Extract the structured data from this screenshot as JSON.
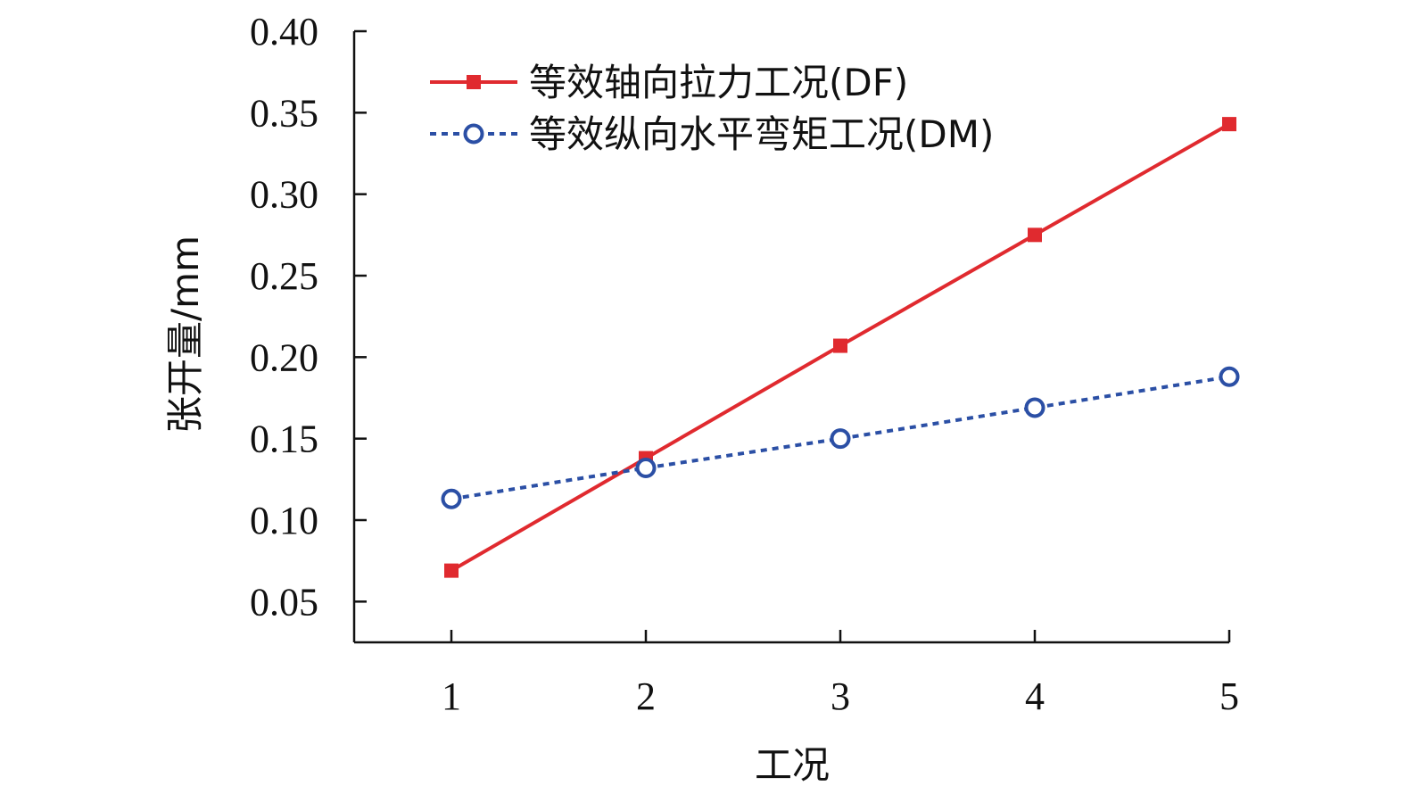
{
  "chart_data": {
    "type": "line",
    "title": "",
    "xlabel": "工况",
    "ylabel": "张开量/mm",
    "x": [
      1,
      2,
      3,
      4,
      5
    ],
    "x_tick_labels": [
      "1",
      "2",
      "3",
      "4",
      "5"
    ],
    "xlim": [
      0.5,
      5
    ],
    "ylim": [
      0.025,
      0.4
    ],
    "y_ticks": [
      0.05,
      0.1,
      0.15,
      0.2,
      0.25,
      0.3,
      0.35,
      0.4
    ],
    "y_tick_labels": [
      "0.05",
      "0.10",
      "0.15",
      "0.20",
      "0.25",
      "0.30",
      "0.35",
      "0.40"
    ],
    "grid": false,
    "legend_position": "top-left",
    "series": [
      {
        "name": "等效轴向拉力工况(DF)",
        "values": [
          0.069,
          0.138,
          0.207,
          0.275,
          0.343
        ],
        "color": "#e02a2f",
        "line_style": "solid",
        "marker": "square"
      },
      {
        "name": "等效纵向水平弯矩工况(DM)",
        "values": [
          0.113,
          0.132,
          0.15,
          0.169,
          0.188
        ],
        "color": "#2b4fa5",
        "line_style": "dotted",
        "marker": "open-circle"
      }
    ]
  }
}
